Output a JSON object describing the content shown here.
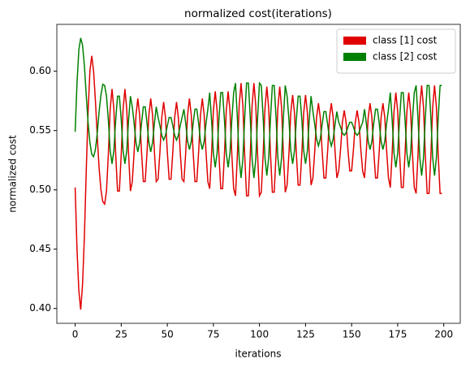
{
  "chart_data": {
    "type": "line",
    "title": "normalized cost(iterations)",
    "x_label": "iterations",
    "y_label": "normalized cost",
    "x": [
      0,
      1,
      2,
      3,
      4,
      5,
      6,
      7,
      8,
      9,
      10,
      11,
      12,
      13,
      14,
      15,
      16,
      17,
      18,
      19,
      20,
      21,
      22,
      23,
      24,
      25,
      26,
      27,
      28,
      29,
      30,
      31,
      32,
      33,
      34,
      35,
      36,
      37,
      38,
      39,
      40,
      41,
      42,
      43,
      44,
      45,
      46,
      47,
      48,
      49,
      50,
      51,
      52,
      53,
      54,
      55,
      56,
      57,
      58,
      59,
      60,
      61,
      62,
      63,
      64,
      65,
      66,
      67,
      68,
      69,
      70,
      71,
      72,
      73,
      74,
      75,
      76,
      77,
      78,
      79,
      80,
      81,
      82,
      83,
      84,
      85,
      86,
      87,
      88,
      89,
      90,
      91,
      92,
      93,
      94,
      95,
      96,
      97,
      98,
      99,
      100,
      101,
      102,
      103,
      104,
      105,
      106,
      107,
      108,
      109,
      110,
      111,
      112,
      113,
      114,
      115,
      116,
      117,
      118,
      119,
      120,
      121,
      122,
      123,
      124,
      125,
      126,
      127,
      128,
      129,
      130,
      131,
      132,
      133,
      134,
      135,
      136,
      137,
      138,
      139,
      140,
      141,
      142,
      143,
      144,
      145,
      146,
      147,
      148,
      149,
      150,
      151,
      152,
      153,
      154,
      155,
      156,
      157,
      158,
      159,
      160,
      161,
      162,
      163,
      164,
      165,
      166,
      167,
      168,
      169,
      170,
      171,
      172,
      173,
      174,
      175,
      176,
      177,
      178,
      179,
      180,
      181,
      182,
      183,
      184,
      185,
      186,
      187,
      188,
      189,
      190,
      191,
      192,
      193,
      194,
      195,
      196,
      197,
      198,
      199
    ],
    "series": [
      {
        "name": "class [1] cost",
        "color": "#e00000",
        "values": [
          0.502,
          0.45,
          0.415,
          0.399,
          0.42,
          0.46,
          0.515,
          0.565,
          0.6,
          0.613,
          0.6,
          0.575,
          0.545,
          0.518,
          0.5,
          0.49,
          0.488,
          0.499,
          0.53,
          0.568,
          0.585,
          0.568,
          0.53,
          0.499,
          0.499,
          0.53,
          0.568,
          0.585,
          0.568,
          0.53,
          0.499,
          0.507,
          0.532,
          0.563,
          0.577,
          0.563,
          0.532,
          0.507,
          0.507,
          0.532,
          0.563,
          0.577,
          0.563,
          0.532,
          0.507,
          0.509,
          0.532,
          0.561,
          0.574,
          0.561,
          0.532,
          0.509,
          0.509,
          0.532,
          0.561,
          0.574,
          0.561,
          0.532,
          0.509,
          0.507,
          0.532,
          0.563,
          0.577,
          0.563,
          0.532,
          0.507,
          0.507,
          0.532,
          0.563,
          0.577,
          0.563,
          0.532,
          0.507,
          0.501,
          0.53,
          0.567,
          0.583,
          0.567,
          0.53,
          0.501,
          0.501,
          0.53,
          0.567,
          0.583,
          0.567,
          0.53,
          0.501,
          0.495,
          0.529,
          0.571,
          0.59,
          0.571,
          0.529,
          0.495,
          0.495,
          0.529,
          0.571,
          0.59,
          0.571,
          0.529,
          0.495,
          0.498,
          0.53,
          0.569,
          0.587,
          0.569,
          0.53,
          0.498,
          0.498,
          0.53,
          0.569,
          0.587,
          0.569,
          0.53,
          0.498,
          0.504,
          0.531,
          0.565,
          0.58,
          0.565,
          0.531,
          0.504,
          0.504,
          0.531,
          0.565,
          0.58,
          0.565,
          0.531,
          0.504,
          0.51,
          0.533,
          0.561,
          0.573,
          0.561,
          0.533,
          0.51,
          0.51,
          0.533,
          0.561,
          0.573,
          0.561,
          0.533,
          0.51,
          0.516,
          0.534,
          0.557,
          0.567,
          0.557,
          0.534,
          0.516,
          0.516,
          0.534,
          0.557,
          0.567,
          0.557,
          0.534,
          0.516,
          0.51,
          0.533,
          0.561,
          0.573,
          0.561,
          0.533,
          0.51,
          0.51,
          0.533,
          0.561,
          0.573,
          0.561,
          0.533,
          0.51,
          0.502,
          0.531,
          0.566,
          0.582,
          0.566,
          0.531,
          0.502,
          0.502,
          0.531,
          0.566,
          0.582,
          0.566,
          0.531,
          0.502,
          0.497,
          0.529,
          0.57,
          0.588,
          0.57,
          0.529,
          0.497,
          0.497,
          0.529,
          0.57,
          0.588,
          0.57,
          0.529,
          0.497,
          0.497
        ]
      },
      {
        "name": "class [2] cost",
        "color": "#008000",
        "values": [
          0.549,
          0.59,
          0.618,
          0.628,
          0.622,
          0.605,
          0.58,
          0.557,
          0.54,
          0.53,
          0.528,
          0.534,
          0.548,
          0.566,
          0.58,
          0.589,
          0.588,
          0.579,
          0.559,
          0.533,
          0.522,
          0.533,
          0.559,
          0.579,
          0.579,
          0.559,
          0.533,
          0.522,
          0.533,
          0.559,
          0.579,
          0.57,
          0.556,
          0.54,
          0.532,
          0.54,
          0.556,
          0.57,
          0.57,
          0.556,
          0.54,
          0.532,
          0.54,
          0.556,
          0.57,
          0.561,
          0.554,
          0.546,
          0.542,
          0.546,
          0.554,
          0.561,
          0.561,
          0.554,
          0.546,
          0.542,
          0.546,
          0.554,
          0.561,
          0.568,
          0.556,
          0.541,
          0.534,
          0.541,
          0.556,
          0.568,
          0.568,
          0.556,
          0.541,
          0.534,
          0.541,
          0.556,
          0.568,
          0.582,
          0.559,
          0.531,
          0.519,
          0.531,
          0.559,
          0.582,
          0.582,
          0.559,
          0.531,
          0.519,
          0.531,
          0.559,
          0.582,
          0.59,
          0.561,
          0.526,
          0.51,
          0.526,
          0.561,
          0.59,
          0.59,
          0.561,
          0.526,
          0.51,
          0.526,
          0.561,
          0.59,
          0.588,
          0.561,
          0.527,
          0.512,
          0.527,
          0.561,
          0.588,
          0.588,
          0.561,
          0.527,
          0.512,
          0.527,
          0.561,
          0.588,
          0.579,
          0.559,
          0.533,
          0.522,
          0.533,
          0.559,
          0.579,
          0.579,
          0.559,
          0.533,
          0.522,
          0.533,
          0.559,
          0.579,
          0.566,
          0.555,
          0.543,
          0.537,
          0.543,
          0.555,
          0.566,
          0.566,
          0.555,
          0.543,
          0.537,
          0.543,
          0.555,
          0.566,
          0.557,
          0.553,
          0.548,
          0.546,
          0.548,
          0.553,
          0.557,
          0.557,
          0.553,
          0.548,
          0.546,
          0.548,
          0.553,
          0.557,
          0.568,
          0.556,
          0.541,
          0.534,
          0.541,
          0.556,
          0.568,
          0.568,
          0.556,
          0.541,
          0.534,
          0.541,
          0.556,
          0.568,
          0.582,
          0.559,
          0.531,
          0.519,
          0.531,
          0.559,
          0.582,
          0.582,
          0.559,
          0.531,
          0.519,
          0.531,
          0.559,
          0.582,
          0.588,
          0.561,
          0.527,
          0.512,
          0.527,
          0.561,
          0.588,
          0.588,
          0.561,
          0.527,
          0.512,
          0.527,
          0.561,
          0.588,
          0.588
        ]
      }
    ],
    "xlim": [
      -9.95,
      208.95
    ],
    "xticks": [
      0,
      25,
      50,
      75,
      100,
      125,
      150,
      175,
      200
    ],
    "ylim": [
      0.3875,
      0.6395
    ],
    "yticks": [
      {
        "value": 0.4,
        "label": "0.40"
      },
      {
        "value": 0.45,
        "label": "0.45"
      },
      {
        "value": 0.5,
        "label": "0.50"
      },
      {
        "value": 0.55,
        "label": "0.55"
      },
      {
        "value": 0.6,
        "label": "0.60"
      }
    ],
    "legend": "upper right",
    "grid": false
  }
}
